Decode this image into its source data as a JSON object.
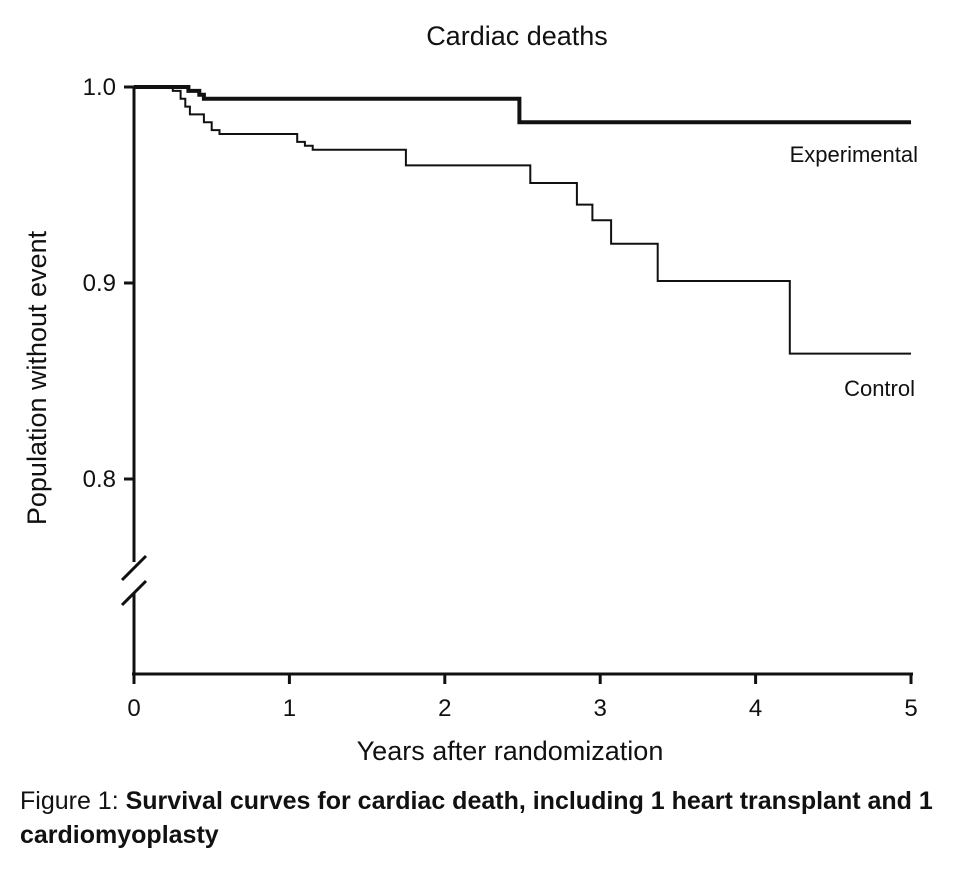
{
  "chart_data": {
    "type": "line",
    "step": true,
    "title": "Cardiac deaths",
    "xlabel": "Years after randomization",
    "ylabel": "Population without event",
    "xlim": [
      0,
      5
    ],
    "ylim_displayed": [
      0.8,
      1.0
    ],
    "axis_break": true,
    "grid": false,
    "x_ticks": [
      "0",
      "1",
      "2",
      "3",
      "4",
      "5"
    ],
    "y_ticks": [
      "0.8",
      "0.9",
      "1.0"
    ],
    "series": [
      {
        "name": "Experimental",
        "color": "#111111",
        "line": "thick",
        "points": [
          [
            0,
            1.0
          ],
          [
            0.3,
            1.0
          ],
          [
            0.35,
            0.998
          ],
          [
            0.42,
            0.996
          ],
          [
            0.45,
            0.994
          ],
          [
            2.48,
            0.994
          ],
          [
            2.48,
            0.982
          ],
          [
            5.0,
            0.982
          ]
        ]
      },
      {
        "name": "Control",
        "color": "#111111",
        "line": "thin",
        "points": [
          [
            0,
            1.0
          ],
          [
            0.25,
            0.998
          ],
          [
            0.3,
            0.994
          ],
          [
            0.33,
            0.99
          ],
          [
            0.36,
            0.986
          ],
          [
            0.45,
            0.982
          ],
          [
            0.5,
            0.978
          ],
          [
            0.55,
            0.976
          ],
          [
            1.0,
            0.976
          ],
          [
            1.05,
            0.972
          ],
          [
            1.1,
            0.97
          ],
          [
            1.15,
            0.968
          ],
          [
            1.75,
            0.968
          ],
          [
            1.75,
            0.96
          ],
          [
            2.55,
            0.96
          ],
          [
            2.55,
            0.951
          ],
          [
            2.85,
            0.951
          ],
          [
            2.85,
            0.94
          ],
          [
            2.95,
            0.94
          ],
          [
            2.95,
            0.932
          ],
          [
            3.07,
            0.932
          ],
          [
            3.07,
            0.92
          ],
          [
            3.37,
            0.92
          ],
          [
            3.37,
            0.901
          ],
          [
            4.22,
            0.901
          ],
          [
            4.22,
            0.864
          ],
          [
            5.0,
            0.864
          ]
        ]
      }
    ]
  },
  "caption": {
    "prefix": "Figure 1: ",
    "text": "Survival curves for cardiac death, including 1 heart transplant and 1 cardiomyoplasty"
  }
}
